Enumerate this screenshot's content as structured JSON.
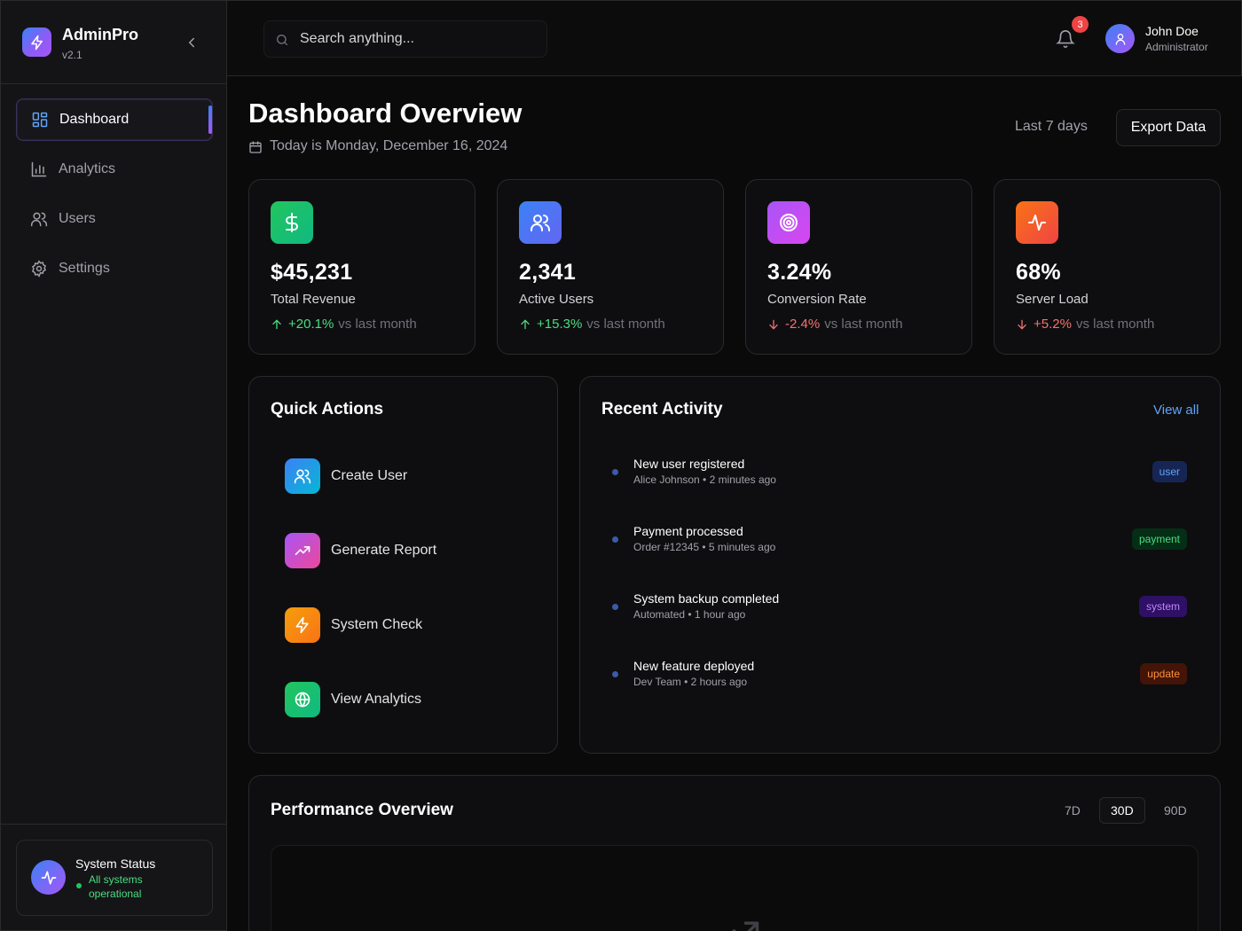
{
  "sidebar": {
    "brand_name": "AdminPro",
    "brand_version": "v2.1",
    "items": [
      {
        "label": "Dashboard",
        "icon": "dashboard-icon",
        "active": true
      },
      {
        "label": "Analytics",
        "icon": "bar-chart-icon",
        "active": false
      },
      {
        "label": "Users",
        "icon": "users-icon",
        "active": false
      },
      {
        "label": "Settings",
        "icon": "gear-icon",
        "active": false
      }
    ],
    "system_status": {
      "title": "System Status",
      "status": "All systems operational"
    }
  },
  "header": {
    "search_placeholder": "Search anything...",
    "notification_count": "3",
    "user_name": "John Doe",
    "user_role": "Administrator"
  },
  "main": {
    "title": "Dashboard Overview",
    "date": "Today is Monday, December 16, 2024",
    "range_label": "Last 7 days",
    "export_label": "Export Data"
  },
  "stats": [
    {
      "value": "$45,231",
      "label": "Total Revenue",
      "change": "+20.1%",
      "vs": "vs last month",
      "direction": "up",
      "trend_color": "#4ade80",
      "icon": "dollar-icon",
      "gradient": [
        "#22c55e",
        "#10b981"
      ]
    },
    {
      "value": "2,341",
      "label": "Active Users",
      "change": "+15.3%",
      "vs": "vs last month",
      "direction": "up",
      "trend_color": "#4ade80",
      "icon": "users-icon",
      "gradient": [
        "#3b82f6",
        "#6366f1"
      ]
    },
    {
      "value": "3.24%",
      "label": "Conversion Rate",
      "change": "-2.4%",
      "vs": "vs last month",
      "direction": "down",
      "trend_color": "#f87171",
      "icon": "target-icon",
      "gradient": [
        "#a855f7",
        "#d946ef"
      ]
    },
    {
      "value": "68%",
      "label": "Server Load",
      "change": "+5.2%",
      "vs": "vs last month",
      "direction": "down",
      "trend_color": "#f87171",
      "icon": "activity-icon",
      "gradient": [
        "#f97316",
        "#ef4444"
      ]
    }
  ],
  "quick_actions": {
    "title": "Quick Actions",
    "items": [
      {
        "label": "Create User",
        "icon": "users-icon",
        "gradient": [
          "#3b82f6",
          "#06b6d4"
        ]
      },
      {
        "label": "Generate Report",
        "icon": "trending-up-icon",
        "gradient": [
          "#a855f7",
          "#ec4899"
        ]
      },
      {
        "label": "System Check",
        "icon": "lightning-icon",
        "gradient": [
          "#f59e0b",
          "#f97316"
        ]
      },
      {
        "label": "View Analytics",
        "icon": "globe-icon",
        "gradient": [
          "#22c55e",
          "#10b981"
        ]
      }
    ]
  },
  "recent_activity": {
    "title": "Recent Activity",
    "view_all": "View all",
    "items": [
      {
        "title": "New user registered",
        "subtitle": "Alice Johnson • 2 minutes ago",
        "tag": "user",
        "tag_color": "#60a5fa",
        "tag_bg": "#172554"
      },
      {
        "title": "Payment processed",
        "subtitle": "Order #12345 • 5 minutes ago",
        "tag": "payment",
        "tag_color": "#4ade80",
        "tag_bg": "#052e16"
      },
      {
        "title": "System backup completed",
        "subtitle": "Automated • 1 hour ago",
        "tag": "system",
        "tag_color": "#c084fc",
        "tag_bg": "#2e1065"
      },
      {
        "title": "New feature deployed",
        "subtitle": "Dev Team • 2 hours ago",
        "tag": "update",
        "tag_color": "#fb923c",
        "tag_bg": "#431407"
      }
    ]
  },
  "performance": {
    "title": "Performance Overview",
    "ranges": [
      {
        "label": "7D",
        "active": false
      },
      {
        "label": "30D",
        "active": true
      },
      {
        "label": "90D",
        "active": false
      }
    ]
  },
  "colors": {
    "background": "#0a0a0b",
    "sidebar": "#141416",
    "accent_blue": "#3b82f6",
    "accent_purple": "#a855f7",
    "positive": "#4ade80",
    "negative": "#f87171",
    "link": "#60a5fa"
  }
}
